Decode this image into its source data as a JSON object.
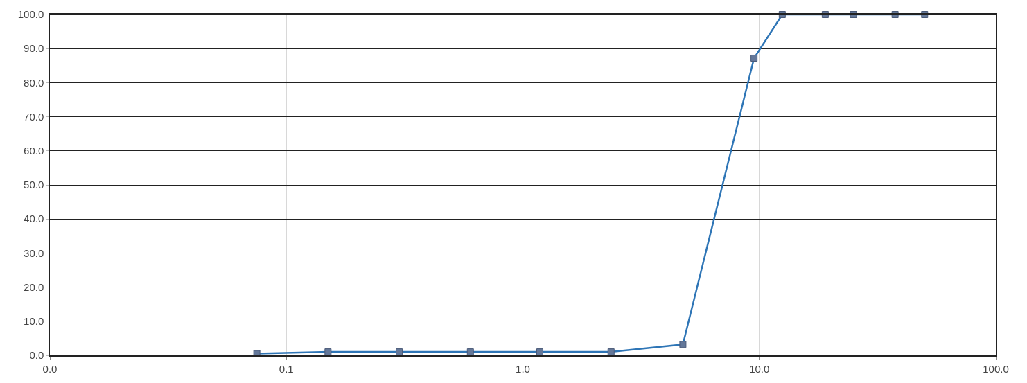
{
  "chart_data": {
    "type": "line",
    "log": "x",
    "grid": true,
    "marker": "square",
    "line_style": "solid",
    "x": [
      0.075,
      0.15,
      0.3,
      0.6,
      1.18,
      2.36,
      4.75,
      9.5,
      12.5,
      19,
      25,
      37.5,
      50
    ],
    "series": [
      {
        "color": "#2e75b6",
        "values": [
          0.5,
          1.0,
          1.0,
          1.0,
          1.0,
          1.0,
          3.2,
          87.2,
          100,
          100,
          100,
          100,
          100
        ]
      }
    ],
    "xlim": [
      0.01,
      100
    ],
    "xticks": [
      {
        "value": 0.01,
        "label": "0.0"
      },
      {
        "value": 0.1,
        "label": "0.1"
      },
      {
        "value": 1,
        "label": "1.0"
      },
      {
        "value": 10,
        "label": "10.0"
      },
      {
        "value": 100,
        "label": "100.0"
      }
    ],
    "ylim": [
      0,
      100
    ],
    "yticks": [
      {
        "value": 0,
        "label": "0.0"
      },
      {
        "value": 10,
        "label": "10.0"
      },
      {
        "value": 20,
        "label": "20.0"
      },
      {
        "value": 30,
        "label": "30.0"
      },
      {
        "value": 40,
        "label": "40.0"
      },
      {
        "value": 50,
        "label": "50.0"
      },
      {
        "value": 60,
        "label": "60.0"
      },
      {
        "value": 70,
        "label": "70.0"
      },
      {
        "value": 80,
        "label": "80.0"
      },
      {
        "value": 90,
        "label": "90.0"
      },
      {
        "value": 100,
        "label": "100.0"
      }
    ]
  }
}
